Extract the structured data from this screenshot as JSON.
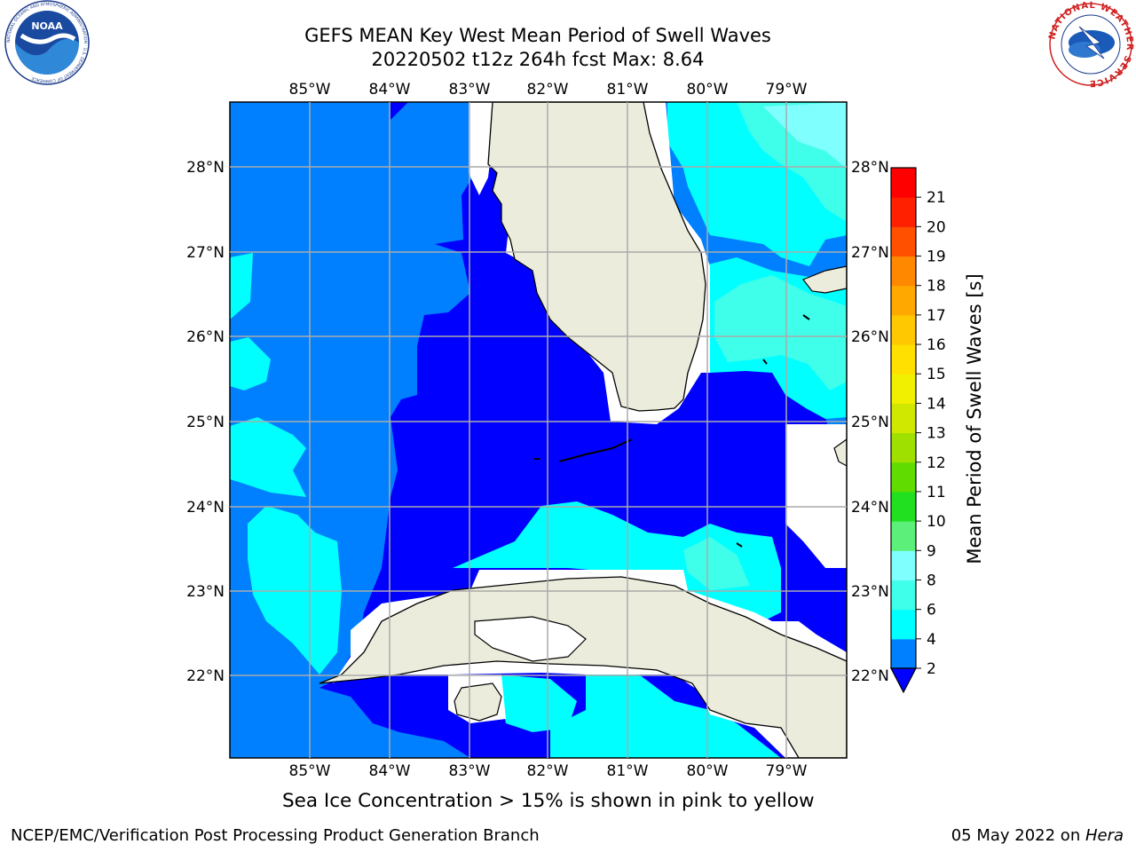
{
  "title": {
    "line1": "GEFS MEAN Key West Mean Period of Swell Waves",
    "line2": "20220502 t12z 264h fcst   Max: 8.64"
  },
  "map": {
    "lon_ticks": [
      "85°W",
      "84°W",
      "83°W",
      "82°W",
      "81°W",
      "80°W",
      "79°W"
    ],
    "lat_ticks": [
      "28°N",
      "27°N",
      "26°N",
      "25°N",
      "24°N",
      "23°N",
      "22°N"
    ],
    "colors": {
      "ocean_2_4": "#0080ff",
      "ocean_lt2": "#0000ff",
      "ocean_4_6": "#00ffff",
      "ocean_6_8": "#40ffea",
      "ocean_8_9": "#80ffff",
      "land": "#ececdc",
      "grid": "#aaaaaa"
    }
  },
  "colorbar": {
    "label": "Mean Period of Swell Waves [s]",
    "ticks": [
      "2",
      "4",
      "6",
      "8",
      "9",
      "10",
      "11",
      "12",
      "13",
      "14",
      "15",
      "16",
      "17",
      "18",
      "19",
      "20",
      "21"
    ],
    "colors": [
      "#0080ff",
      "#00ffff",
      "#40ffea",
      "#80ffff",
      "#5cf07a",
      "#20e020",
      "#60dc00",
      "#a0e000",
      "#d0e800",
      "#f0f000",
      "#ffe000",
      "#ffc800",
      "#ffa800",
      "#ff8800",
      "#ff5000",
      "#ff2000",
      "#ff0000"
    ],
    "under_color": "#0000ff"
  },
  "note": "Sea Ice Concentration > 15% is shown in pink to yellow",
  "footer": {
    "left": "NCEP/EMC/Verification Post Processing Product Generation Branch",
    "date": "05 May 2022 on ",
    "host": "Hera"
  },
  "logos": {
    "noaa": "NOAA",
    "noaa_ring": "NATIONAL OCEANIC AND ATMOSPHERIC ADMINISTRATION · U.S. DEPARTMENT OF COMMERCE",
    "nws_ring": "NATIONAL WEATHER SERVICE"
  }
}
